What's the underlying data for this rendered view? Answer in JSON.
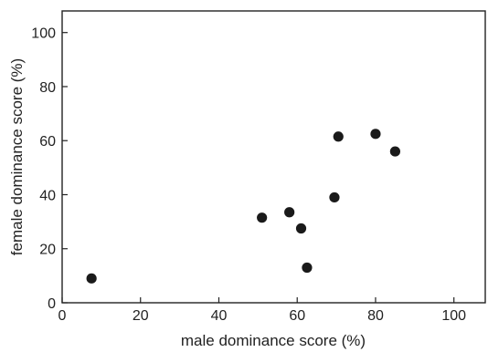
{
  "chart_data": {
    "type": "scatter",
    "title": "",
    "xlabel": "male dominance score (%)",
    "ylabel": "female dominance score (%)",
    "xlim": [
      0,
      108
    ],
    "ylim": [
      0,
      108
    ],
    "xticks": [
      0,
      20,
      40,
      60,
      80,
      100
    ],
    "yticks": [
      0,
      20,
      40,
      60,
      80,
      100
    ],
    "grid": false,
    "legend": "none",
    "marker_color": "#1a1a1a",
    "series": [
      {
        "points": [
          {
            "x": 7.5,
            "y": 9
          },
          {
            "x": 51,
            "y": 31.5
          },
          {
            "x": 58,
            "y": 33.5
          },
          {
            "x": 61,
            "y": 27.5
          },
          {
            "x": 62.5,
            "y": 13
          },
          {
            "x": 69.5,
            "y": 39
          },
          {
            "x": 70.5,
            "y": 61.5
          },
          {
            "x": 80,
            "y": 62.5
          },
          {
            "x": 85,
            "y": 56
          }
        ]
      }
    ]
  }
}
